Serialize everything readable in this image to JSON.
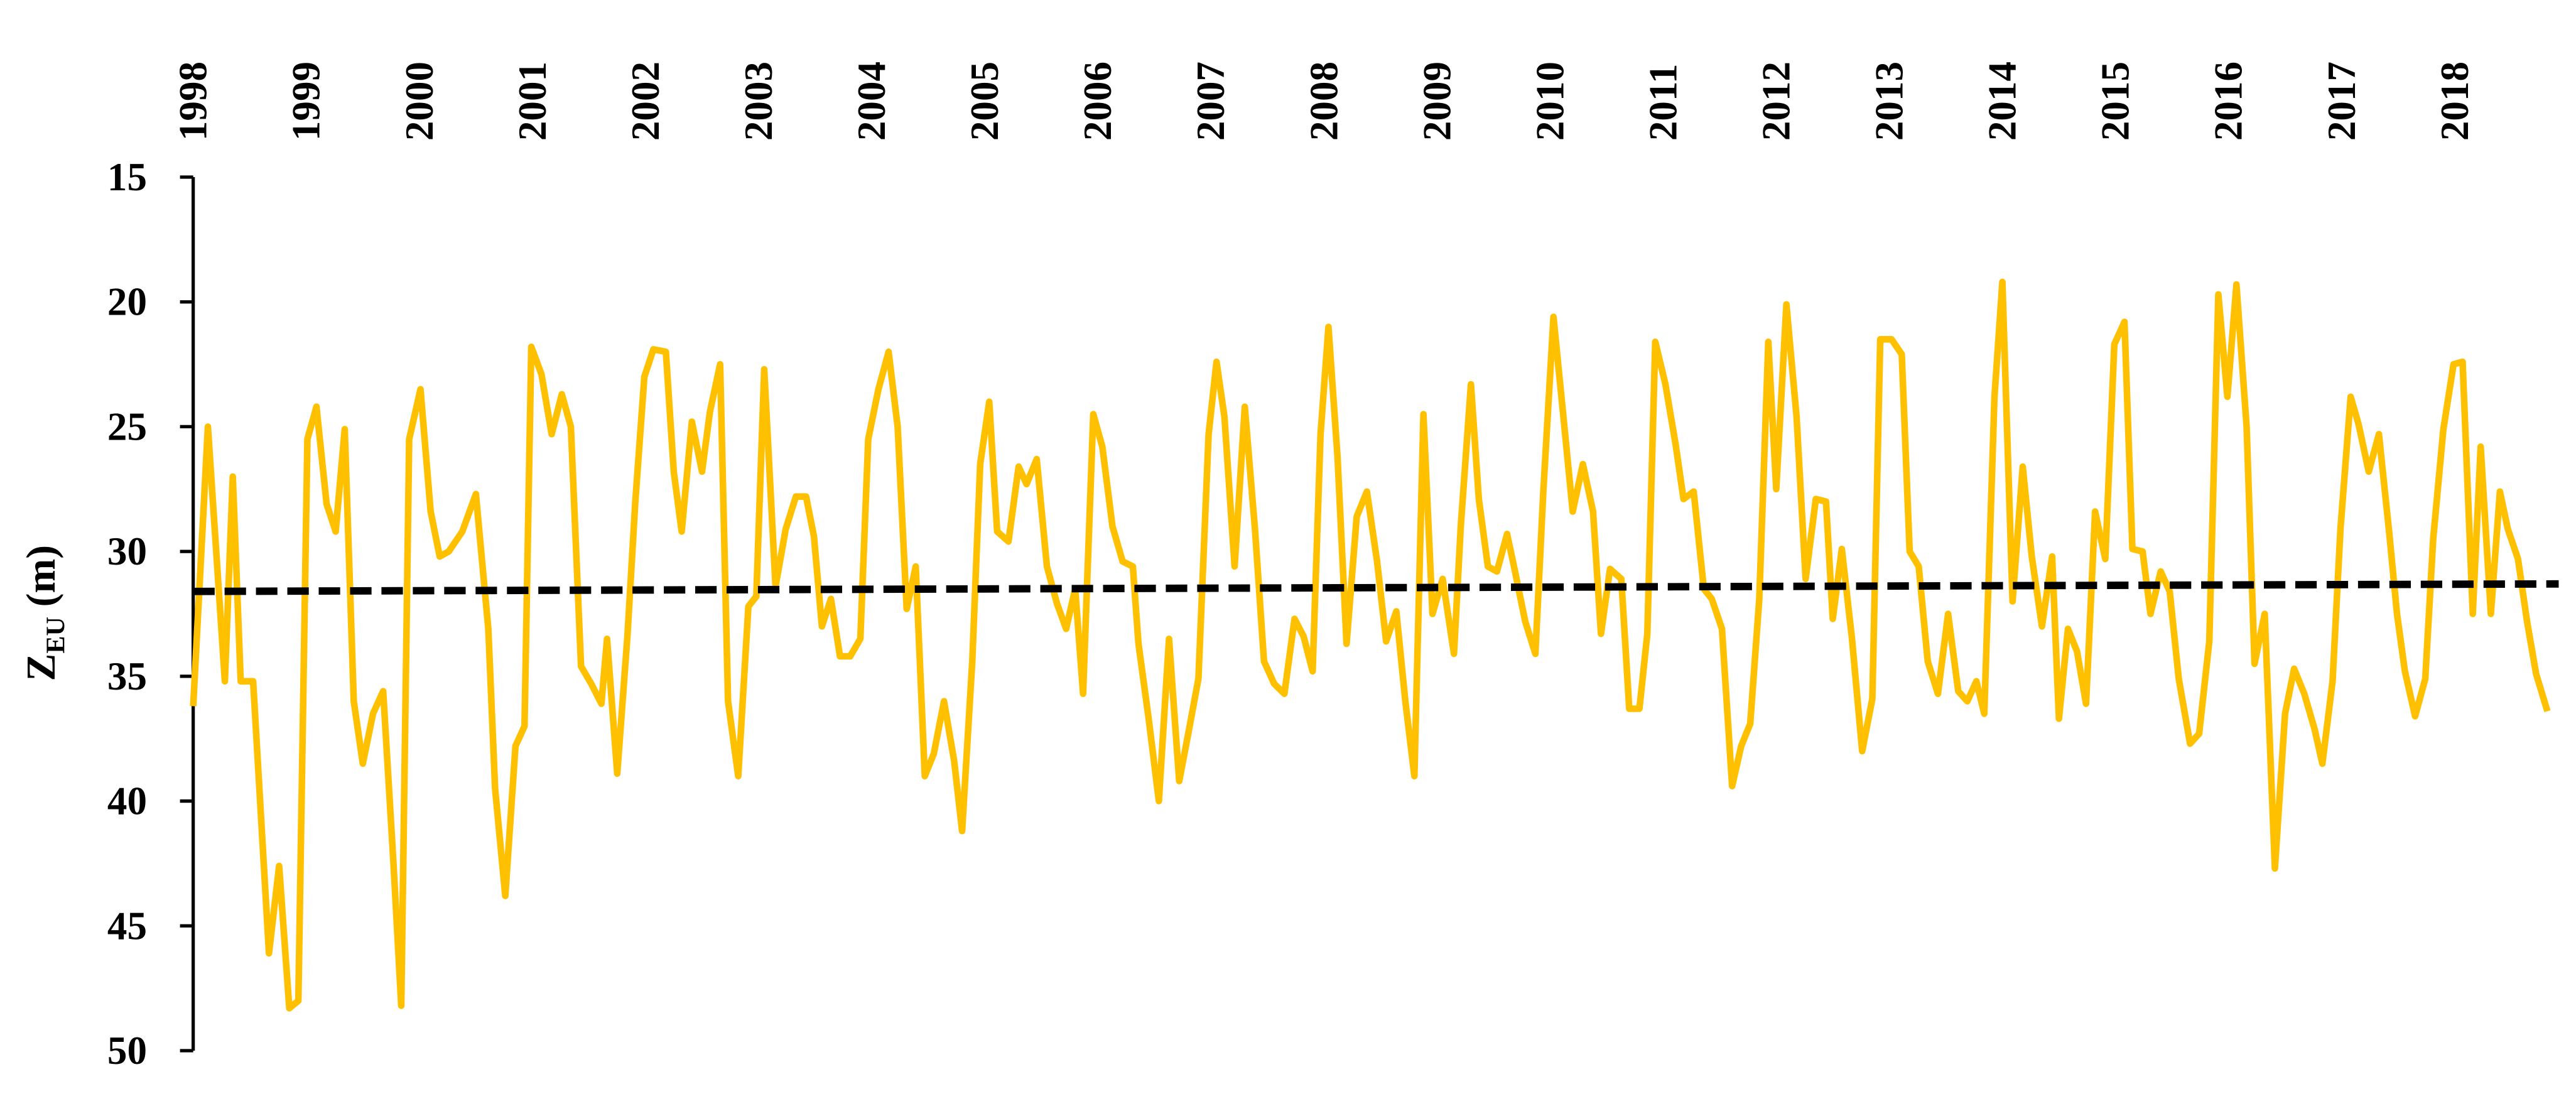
{
  "chart_data": {
    "type": "line",
    "ylabel": {
      "symbol": "Z",
      "subscript": "EU",
      "unit": "(m)"
    },
    "xlim": [
      1998,
      2019
    ],
    "xticks": [
      1998,
      1999,
      2000,
      2001,
      2002,
      2003,
      2004,
      2005,
      2006,
      2007,
      2008,
      2009,
      2010,
      2011,
      2012,
      2013,
      2014,
      2015,
      2016,
      2017,
      2018
    ],
    "ylim": [
      15,
      50
    ],
    "y_inverted": true,
    "yticks": [
      15,
      20,
      25,
      30,
      35,
      40,
      45,
      50
    ],
    "series": [
      {
        "color": "#FFC000",
        "dashed": false,
        "x": [
          1998.0,
          1998.13,
          1998.28,
          1998.35,
          1998.42,
          1998.53,
          1998.67,
          1998.76,
          1998.85,
          1998.93,
          1999.01,
          1999.09,
          1999.18,
          1999.26,
          1999.34,
          1999.42,
          1999.5,
          1999.59,
          1999.68,
          1999.77,
          1999.84,
          1999.91,
          2000.01,
          2000.1,
          2000.18,
          2000.26,
          2000.38,
          2000.5,
          2000.61,
          2000.67,
          2000.76,
          2000.85,
          2000.93,
          2000.99,
          2001.08,
          2001.17,
          2001.26,
          2001.34,
          2001.43,
          2001.52,
          2001.61,
          2001.66,
          2001.75,
          2001.84,
          2001.91,
          2001.99,
          2002.07,
          2002.18,
          2002.25,
          2002.32,
          2002.41,
          2002.5,
          2002.57,
          2002.66,
          2002.73,
          2002.82,
          2002.91,
          2002.98,
          2003.05,
          2003.15,
          2003.24,
          2003.33,
          2003.42,
          2003.49,
          2003.56,
          2003.64,
          2003.72,
          2003.81,
          2003.9,
          2003.97,
          2004.06,
          2004.15,
          2004.23,
          2004.31,
          2004.39,
          2004.47,
          2004.55,
          2004.64,
          2004.73,
          2004.8,
          2004.89,
          2004.96,
          2005.04,
          2005.11,
          2005.21,
          2005.3,
          2005.37,
          2005.46,
          2005.55,
          2005.64,
          2005.72,
          2005.8,
          2005.87,
          2005.96,
          2006.04,
          2006.13,
          2006.22,
          2006.31,
          2006.36,
          2006.45,
          2006.54,
          2006.63,
          2006.72,
          2006.8,
          2006.89,
          2006.98,
          2007.05,
          2007.12,
          2007.21,
          2007.3,
          2007.39,
          2007.47,
          2007.56,
          2007.65,
          2007.74,
          2007.82,
          2007.9,
          2007.97,
          2008.04,
          2008.12,
          2008.2,
          2008.29,
          2008.38,
          2008.47,
          2008.55,
          2008.64,
          2008.72,
          2008.8,
          2008.88,
          2008.96,
          2009.05,
          2009.15,
          2009.21,
          2009.3,
          2009.37,
          2009.45,
          2009.53,
          2009.62,
          2009.69,
          2009.78,
          2009.87,
          2009.94,
          2010.03,
          2010.12,
          2010.2,
          2010.29,
          2010.38,
          2010.45,
          2010.53,
          2010.63,
          2010.7,
          2010.79,
          2010.86,
          2010.93,
          2011.02,
          2011.11,
          2011.18,
          2011.27,
          2011.36,
          2011.43,
          2011.52,
          2011.61,
          2011.69,
          2011.77,
          2011.85,
          2011.93,
          2012.0,
          2012.09,
          2012.18,
          2012.26,
          2012.35,
          2012.44,
          2012.5,
          2012.58,
          2012.67,
          2012.76,
          2012.85,
          2012.92,
          2013.02,
          2013.11,
          2013.18,
          2013.26,
          2013.34,
          2013.43,
          2013.52,
          2013.61,
          2013.69,
          2013.77,
          2013.84,
          2013.93,
          2014.0,
          2014.09,
          2014.18,
          2014.26,
          2014.35,
          2014.44,
          2014.5,
          2014.58,
          2014.66,
          2014.74,
          2014.82,
          2014.91,
          2014.99,
          2015.08,
          2015.15,
          2015.24,
          2015.31,
          2015.4,
          2015.48,
          2015.56,
          2015.66,
          2015.74,
          2015.83,
          2015.91,
          2015.99,
          2016.07,
          2016.16,
          2016.23,
          2016.32,
          2016.41,
          2016.5,
          2016.58,
          2016.67,
          2016.76,
          2016.83,
          2016.92,
          2016.99,
          2017.08,
          2017.15,
          2017.24,
          2017.33,
          2017.42,
          2017.49,
          2017.56,
          2017.65,
          2017.74,
          2017.81,
          2017.9,
          2017.99,
          2018.07,
          2018.16,
          2018.23,
          2018.32,
          2018.4,
          2018.47,
          2018.56,
          2018.64,
          2018.72,
          2018.82
        ],
        "values": [
          36.2,
          25.0,
          35.2,
          27.0,
          35.2,
          35.2,
          46.1,
          42.6,
          48.3,
          48.0,
          25.5,
          24.2,
          28.1,
          29.2,
          25.1,
          36.0,
          38.5,
          36.5,
          35.6,
          42.4,
          48.2,
          25.5,
          23.5,
          28.4,
          30.2,
          30.0,
          29.2,
          27.7,
          33.1,
          39.5,
          43.8,
          37.8,
          37.0,
          21.8,
          22.9,
          25.3,
          23.7,
          25.0,
          34.6,
          35.3,
          36.1,
          33.5,
          38.9,
          33.4,
          28.0,
          23.0,
          21.9,
          22.0,
          26.8,
          29.2,
          24.8,
          26.8,
          24.4,
          22.5,
          36.0,
          39.0,
          32.2,
          31.8,
          22.7,
          31.4,
          29.1,
          27.8,
          27.8,
          29.4,
          33.0,
          31.9,
          34.2,
          34.2,
          33.5,
          25.5,
          23.5,
          22.0,
          25.0,
          32.3,
          30.6,
          39.0,
          38.1,
          36.0,
          38.4,
          41.2,
          34.4,
          26.5,
          24.0,
          29.2,
          29.6,
          26.6,
          27.3,
          26.3,
          30.6,
          32.1,
          33.1,
          31.5,
          35.7,
          24.5,
          25.8,
          29.0,
          30.4,
          30.6,
          33.7,
          36.7,
          40.0,
          33.5,
          39.2,
          37.3,
          35.1,
          25.3,
          22.4,
          24.6,
          30.6,
          24.2,
          29.1,
          34.4,
          35.3,
          35.7,
          32.7,
          33.4,
          34.8,
          25.3,
          21.0,
          26.2,
          33.7,
          28.6,
          27.6,
          30.4,
          33.6,
          32.4,
          36.0,
          39.0,
          24.5,
          32.5,
          31.1,
          34.1,
          29.0,
          23.3,
          27.9,
          30.6,
          30.8,
          29.3,
          30.8,
          32.8,
          34.1,
          27.6,
          20.6,
          24.7,
          28.4,
          26.5,
          28.4,
          33.3,
          30.7,
          31.1,
          36.3,
          36.3,
          33.3,
          21.6,
          23.3,
          25.7,
          27.9,
          27.6,
          31.5,
          31.9,
          33.1,
          39.4,
          37.8,
          36.9,
          31.9,
          21.6,
          27.5,
          20.1,
          24.6,
          31.1,
          27.9,
          28.0,
          32.7,
          29.9,
          33.5,
          38.0,
          35.9,
          21.5,
          21.5,
          22.1,
          30.0,
          30.6,
          34.4,
          35.7,
          32.5,
          35.6,
          36.0,
          35.2,
          36.5,
          23.8,
          19.2,
          32.0,
          26.6,
          30.2,
          33.0,
          30.2,
          36.7,
          33.1,
          34.0,
          36.1,
          28.4,
          30.3,
          21.7,
          20.8,
          29.9,
          30.0,
          32.5,
          30.8,
          31.6,
          35.1,
          37.7,
          37.3,
          33.6,
          19.7,
          23.8,
          19.3,
          25.0,
          34.5,
          32.5,
          42.7,
          36.5,
          34.7,
          35.7,
          37.1,
          38.5,
          35.2,
          29.1,
          23.8,
          24.9,
          26.8,
          25.3,
          29.2,
          32.5,
          34.8,
          36.6,
          35.1,
          29.5,
          25.1,
          22.5,
          22.4,
          32.5,
          25.8,
          32.5,
          27.6,
          29.1,
          30.3,
          32.8,
          34.9,
          36.4
        ]
      },
      {
        "color": "#000000",
        "dashed": true,
        "x": [
          1998.0,
          2018.92
        ],
        "values": [
          31.6,
          31.3
        ]
      }
    ]
  }
}
